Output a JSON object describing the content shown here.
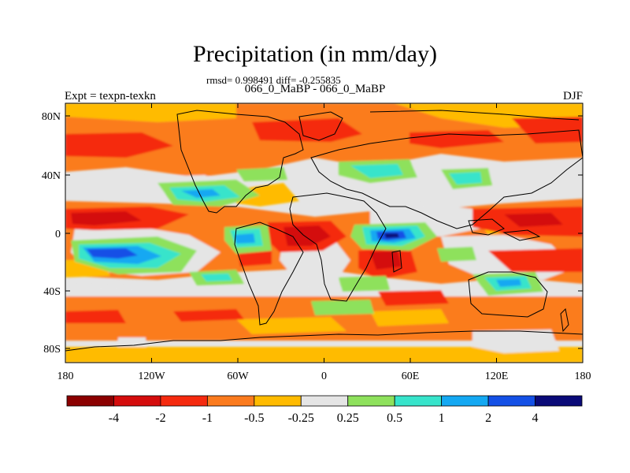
{
  "title": "Precipitation (in mm/day)",
  "stats": "rmsd= 0.998491 diff= -0.255835",
  "subtitle": "066_0_MaBP - 066_0_MaBP",
  "experiment": "Expt = texpn-texkn",
  "season": "DJF",
  "axes": {
    "y_ticks": [
      "80N",
      "40N",
      "0",
      "40S",
      "80S"
    ],
    "x_ticks": [
      "180",
      "120W",
      "60W",
      "0",
      "60E",
      "120E",
      "180"
    ]
  },
  "colorbar": {
    "labels": [
      "-4",
      "-2",
      "-1",
      "-0.5",
      "-0.25",
      "0.25",
      "0.5",
      "1",
      "2",
      "4"
    ],
    "colors": [
      "#8b0000",
      "#d40c0c",
      "#f52a0f",
      "#fb7b1e",
      "#ffbb00",
      "#e5e5e5",
      "#8ee15c",
      "#37e4cb",
      "#14a8f2",
      "#1450e6",
      "#0a0a78"
    ]
  },
  "map_colors": {
    "background": "#e5e5e5",
    "orange": "#fb7b1e",
    "yellow": "#ffbb00",
    "red": "#f52a0f",
    "darkred": "#d40c0c",
    "green": "#8ee15c",
    "cyan": "#37e4cb",
    "lightblue": "#14a8f2",
    "blue": "#1450e6",
    "navy": "#0a0a78",
    "coast": "#000000"
  }
}
